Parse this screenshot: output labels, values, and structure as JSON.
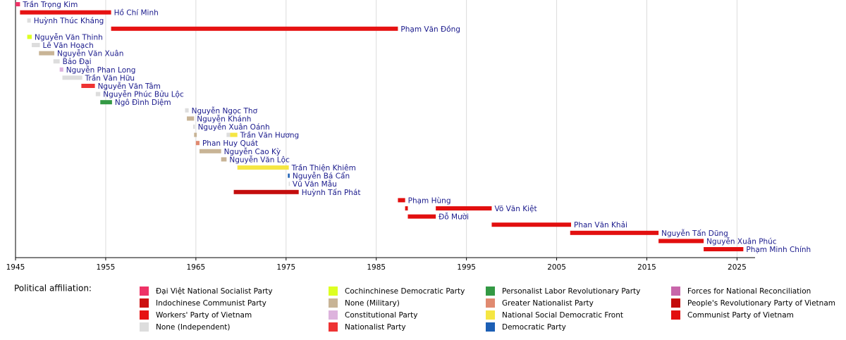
{
  "chart_data": {
    "type": "timeline",
    "xlim": [
      1945,
      2027
    ],
    "xticks": [
      1945,
      1955,
      1965,
      1975,
      1985,
      1995,
      2005,
      2015,
      2025
    ],
    "grid": true,
    "rows": [
      {
        "name": "Trần Trọng Kim",
        "spans": [
          {
            "start": 1945.0,
            "end": 1945.5,
            "color": "#ee3366"
          }
        ]
      },
      {
        "name": "Hồ Chí Minh",
        "spans": [
          {
            "start": 1945.5,
            "end": 1955.6,
            "color": "#e61212"
          }
        ]
      },
      {
        "name": "Huỳnh Thúc Kháng",
        "spans": [
          {
            "start": 1946.3,
            "end": 1946.7,
            "color": "#dddddd"
          }
        ]
      },
      {
        "name": "Phạm Văn Đồng",
        "spans": [
          {
            "start": 1955.6,
            "end": 1987.4,
            "color": "#e61212"
          }
        ]
      },
      {
        "name": "Nguyễn Văn Thinh",
        "spans": [
          {
            "start": 1946.3,
            "end": 1946.8,
            "color": "#ddff22"
          }
        ]
      },
      {
        "name": "Lê Văn Hoạch",
        "spans": [
          {
            "start": 1946.8,
            "end": 1947.7,
            "color": "#dddddd"
          }
        ]
      },
      {
        "name": "Nguyễn Văn Xuân",
        "spans": [
          {
            "start": 1947.6,
            "end": 1949.3,
            "color": "#c8b496"
          }
        ]
      },
      {
        "name": "Bảo Đại",
        "spans": [
          {
            "start": 1949.2,
            "end": 1949.9,
            "color": "#dddddd"
          }
        ]
      },
      {
        "name": "Nguyễn Phan Long",
        "spans": [
          {
            "start": 1949.9,
            "end": 1950.3,
            "color": "#ddb3dd"
          }
        ]
      },
      {
        "name": "Trần Văn Hữu",
        "spans": [
          {
            "start": 1950.2,
            "end": 1952.4,
            "color": "#dddddd"
          }
        ]
      },
      {
        "name": "Nguyễn Văn Tâm",
        "spans": [
          {
            "start": 1952.3,
            "end": 1953.8,
            "color": "#ee3333"
          }
        ]
      },
      {
        "name": "Nguyễn Phúc Bửu Lộc",
        "spans": [
          {
            "start": 1953.9,
            "end": 1954.4,
            "color": "#dddddd"
          }
        ]
      },
      {
        "name": "Ngô Đình Diệm",
        "spans": [
          {
            "start": 1954.4,
            "end": 1955.7,
            "color": "#339944"
          }
        ]
      },
      {
        "name": "Nguyễn Ngọc Thơ",
        "spans": [
          {
            "start": 1963.8,
            "end": 1964.2,
            "color": "#dddddd"
          }
        ]
      },
      {
        "name": "Nguyễn Khánh",
        "spans": [
          {
            "start": 1964.0,
            "end": 1964.8,
            "color": "#c8b496"
          }
        ]
      },
      {
        "name": "Nguyễn Xuân Oánh",
        "spans": [
          {
            "start": 1964.7,
            "end": 1964.9,
            "color": "#dddddd"
          }
        ]
      },
      {
        "name": "Trần Văn Hương",
        "spans": [
          {
            "start": 1964.8,
            "end": 1965.1,
            "color": "#c8b496"
          },
          {
            "start": 1968.4,
            "end": 1968.8,
            "color": "#dddddd"
          },
          {
            "start": 1968.8,
            "end": 1969.6,
            "color": "#f5e642"
          }
        ]
      },
      {
        "name": "Phan Huy Quát",
        "spans": [
          {
            "start": 1965.0,
            "end": 1965.4,
            "color": "#e08a70"
          }
        ]
      },
      {
        "name": "Nguyễn Cao Kỳ",
        "spans": [
          {
            "start": 1965.4,
            "end": 1967.8,
            "color": "#c8b496"
          }
        ]
      },
      {
        "name": "Nguyễn Văn Lộc",
        "spans": [
          {
            "start": 1967.8,
            "end": 1968.4,
            "color": "#c8b496"
          }
        ]
      },
      {
        "name": "Trần Thiện Khiêm",
        "spans": [
          {
            "start": 1969.6,
            "end": 1975.3,
            "color": "#f5e642"
          }
        ]
      },
      {
        "name": "Nguyễn Bá Cẩn",
        "spans": [
          {
            "start": 1975.2,
            "end": 1975.4,
            "color": "#1c5fb5"
          }
        ]
      },
      {
        "name": "Vũ Văn Mẫu",
        "spans": [
          {
            "start": 1975.3,
            "end": 1975.4,
            "color": "#dddddd"
          }
        ]
      },
      {
        "name": "Huỳnh Tấn Phát",
        "spans": [
          {
            "start": 1969.2,
            "end": 1976.4,
            "color": "#c40d0d"
          }
        ]
      },
      {
        "name": "Phạm Hùng",
        "spans": [
          {
            "start": 1987.4,
            "end": 1988.2,
            "color": "#e20f0f"
          }
        ]
      },
      {
        "name": "Võ Văn Kiệt",
        "spans": [
          {
            "start": 1988.2,
            "end": 1988.5,
            "color": "#e20f0f"
          },
          {
            "start": 1991.6,
            "end": 1997.8,
            "color": "#e20f0f"
          }
        ]
      },
      {
        "name": "Đỗ Mười",
        "spans": [
          {
            "start": 1988.5,
            "end": 1991.6,
            "color": "#e20f0f"
          }
        ]
      },
      {
        "name": "Phan Văn Khải",
        "spans": [
          {
            "start": 1997.8,
            "end": 2006.6,
            "color": "#e20f0f"
          }
        ]
      },
      {
        "name": "Nguyễn Tấn Dũng",
        "spans": [
          {
            "start": 2006.5,
            "end": 2016.3,
            "color": "#e20f0f"
          }
        ]
      },
      {
        "name": "Nguyễn Xuân Phúc",
        "spans": [
          {
            "start": 2016.3,
            "end": 2021.3,
            "color": "#e20f0f"
          }
        ]
      },
      {
        "name": "Phạm Minh Chính",
        "spans": [
          {
            "start": 2021.3,
            "end": 2025.7,
            "color": "#e20f0f"
          }
        ]
      }
    ],
    "legend_title": "Political affiliation:",
    "legend": [
      {
        "name": "Đại Việt National Socialist Party",
        "color": "#ee3366"
      },
      {
        "name": "Indochinese Communist Party",
        "color": "#cc1111"
      },
      {
        "name": "Workers' Party of Vietnam",
        "color": "#e61212"
      },
      {
        "name": "None (Independent)",
        "color": "#dddddd"
      },
      {
        "name": "Cochinchinese Democratic Party",
        "color": "#ddff22"
      },
      {
        "name": "None (Military)",
        "color": "#c8b496"
      },
      {
        "name": "Constitutional Party",
        "color": "#ddb3dd"
      },
      {
        "name": "Nationalist Party",
        "color": "#ee3333"
      },
      {
        "name": "Personalist Labor Revolutionary Party",
        "color": "#339944"
      },
      {
        "name": "Greater Nationalist Party",
        "color": "#e08a70"
      },
      {
        "name": "National Social Democratic Front",
        "color": "#f5e642"
      },
      {
        "name": "Democratic Party",
        "color": "#1c5fb5"
      },
      {
        "name": "Forces for National Reconciliation",
        "color": "#c866aa"
      },
      {
        "name": "People's Revolutionary Party of Vietnam",
        "color": "#c40d0d"
      },
      {
        "name": "Communist Party of Vietnam",
        "color": "#e20f0f"
      }
    ]
  }
}
